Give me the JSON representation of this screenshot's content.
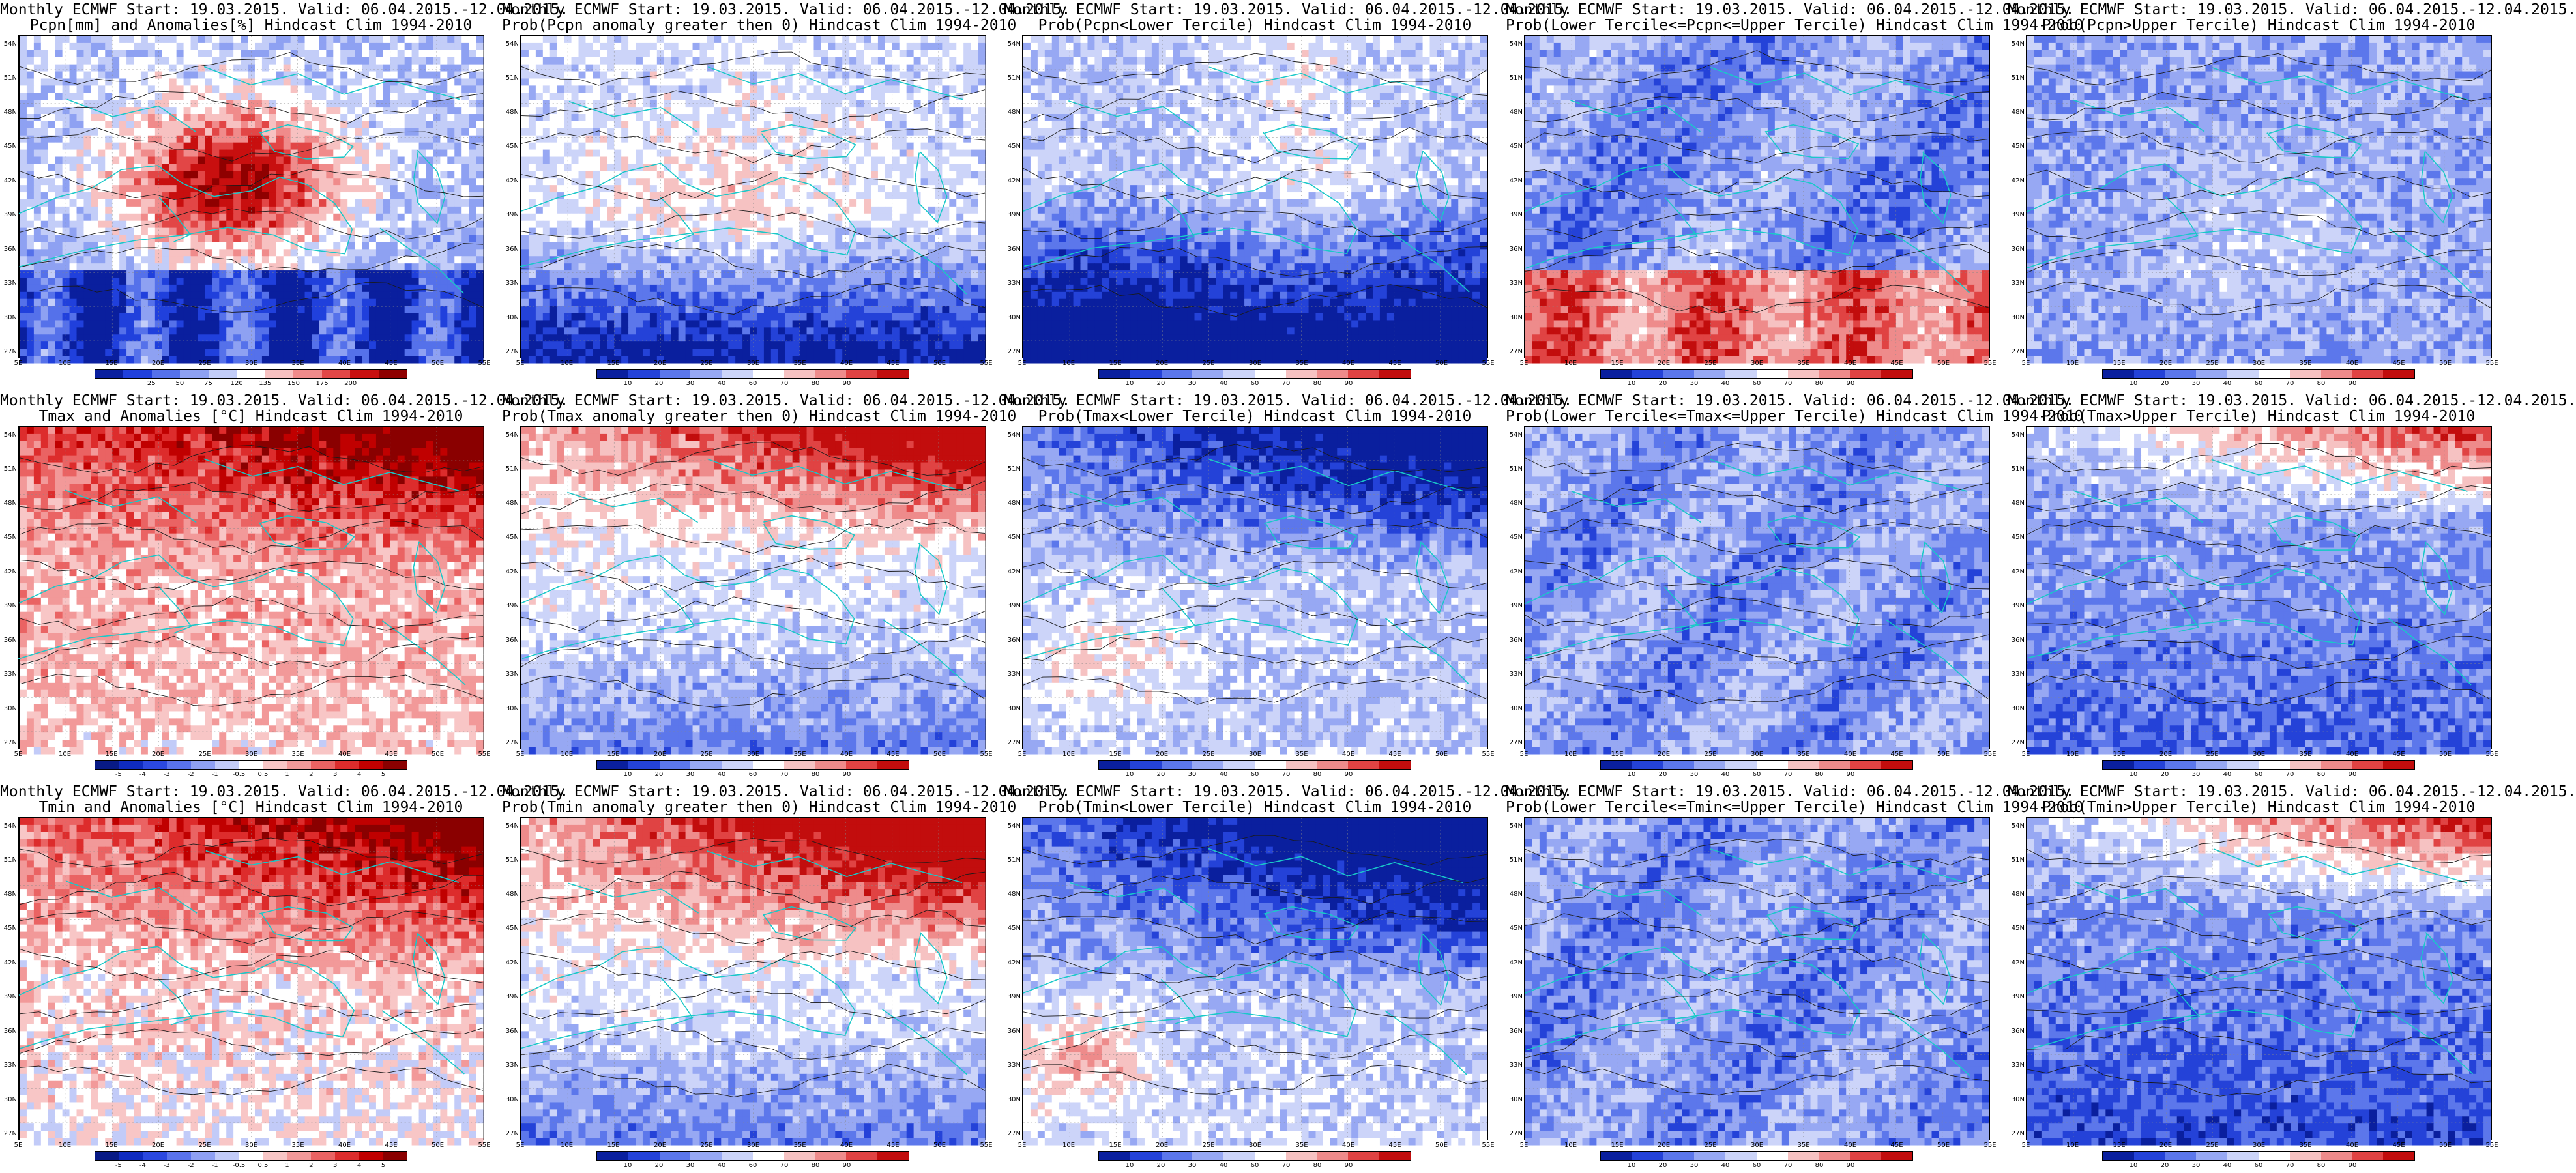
{
  "figure": {
    "rows": [
      {
        "variable": "Pcpn",
        "panels": [
          {
            "id": "pcpn-mean",
            "line1": "Monthly ECMWF Start: 19.03.2015. Valid: 06.04.2015.-12.04.2015.",
            "line2": "Pcpn[mm] and Anomalies[%] Hindcast Clim 1994-2010",
            "scale": "pcpn-anom",
            "pattern": "pcpn-anom"
          },
          {
            "id": "pcpn-prob-gt0",
            "line1": "Monthly ECMWF Start: 19.03.2015. Valid: 06.04.2015.-12.04.2015.",
            "line2": "Prob(Pcpn anomaly greater then 0) Hindcast Clim 1994-2010",
            "scale": "prob",
            "pattern": "pcpn-gt0"
          },
          {
            "id": "pcpn-prob-lower",
            "line1": "Monthly ECMWF Start: 19.03.2015. Valid: 06.04.2015.-12.04.2015.",
            "line2": "Prob(Pcpn<Lower Tercile) Hindcast Clim 1994-2010",
            "scale": "prob",
            "pattern": "pcpn-lower"
          },
          {
            "id": "pcpn-prob-middle",
            "line1": "Monthly ECMWF Start: 19.03.2015. Valid: 06.04.2015.-12.04.2015.",
            "line2": "Prob(Lower Tercile<=Pcpn<=Upper Tercile) Hindcast Clim 1994-2010",
            "scale": "prob",
            "pattern": "pcpn-middle"
          },
          {
            "id": "pcpn-prob-upper",
            "line1": "Monthly ECMWF Start: 19.03.2015. Valid: 06.04.2015.-12.04.2015.",
            "line2": "Prob(Pcpn>Upper Tercile) Hindcast Clim 1994-2010",
            "scale": "prob",
            "pattern": "pcpn-upper"
          }
        ]
      },
      {
        "variable": "Tmax",
        "panels": [
          {
            "id": "tmax-mean",
            "line1": "Monthly ECMWF Start: 19.03.2015. Valid: 06.04.2015.-12.04.2015.",
            "line2": "Tmax and Anomalies [°C] Hindcast Clim 1994-2010",
            "scale": "temp-anom",
            "pattern": "tmax-anom"
          },
          {
            "id": "tmax-prob-gt0",
            "line1": "Monthly ECMWF Start: 19.03.2015. Valid: 06.04.2015.-12.04.2015.",
            "line2": "Prob(Tmax anomaly greater then 0) Hindcast Clim 1994-2010",
            "scale": "prob",
            "pattern": "tmax-gt0"
          },
          {
            "id": "tmax-prob-lower",
            "line1": "Monthly ECMWF Start: 19.03.2015. Valid: 06.04.2015.-12.04.2015.",
            "line2": "Prob(Tmax<Lower Tercile) Hindcast Clim 1994-2010",
            "scale": "prob",
            "pattern": "tmax-lower"
          },
          {
            "id": "tmax-prob-middle",
            "line1": "Monthly ECMWF Start: 19.03.2015. Valid: 06.04.2015.-12.04.2015.",
            "line2": "Prob(Lower Tercile<=Tmax<=Upper Tercile) Hindcast Clim 1994-2010",
            "scale": "prob",
            "pattern": "tmax-middle"
          },
          {
            "id": "tmax-prob-upper",
            "line1": "Monthly ECMWF Start: 19.03.2015. Valid: 06.04.2015.-12.04.2015.",
            "line2": "Prob(Tmax>Upper Tercile) Hindcast Clim 1994-2010",
            "scale": "prob",
            "pattern": "tmax-upper"
          }
        ]
      },
      {
        "variable": "Tmin",
        "panels": [
          {
            "id": "tmin-mean",
            "line1": "Monthly ECMWF Start: 19.03.2015. Valid: 06.04.2015.-12.04.2015.",
            "line2": "Tmin and Anomalies [°C] Hindcast Clim 1994-2010",
            "scale": "temp-anom",
            "pattern": "tmin-anom"
          },
          {
            "id": "tmin-prob-gt0",
            "line1": "Monthly ECMWF Start: 19.03.2015. Valid: 06.04.2015.-12.04.2015.",
            "line2": "Prob(Tmin anomaly greater then 0) Hindcast Clim 1994-2010",
            "scale": "prob",
            "pattern": "tmin-gt0"
          },
          {
            "id": "tmin-prob-lower",
            "line1": "Monthly ECMWF Start: 19.03.2015. Valid: 06.04.2015.-12.04.2015.",
            "line2": "Prob(Tmin<Lower Tercile) Hindcast Clim 1994-2010",
            "scale": "prob",
            "pattern": "tmin-lower"
          },
          {
            "id": "tmin-prob-middle",
            "line1": "Monthly ECMWF Start: 19.03.2015. Valid: 06.04.2015.-12.04.2015.",
            "line2": "Prob(Lower Tercile<=Tmin<=Upper Tercile) Hindcast Clim 1994-2010",
            "scale": "prob",
            "pattern": "tmin-middle"
          },
          {
            "id": "tmin-prob-upper",
            "line1": "Monthly ECMWF Start: 19.03.2015. Valid: 06.04.2015.-12.04.2015.",
            "line2": "Prob(Tmin>Upper Tercile) Hindcast Clim 1994-2010",
            "scale": "prob",
            "pattern": "tmin-upper"
          }
        ]
      }
    ],
    "lat_labels": [
      "54N",
      "51N",
      "48N",
      "45N",
      "42N",
      "39N",
      "36N",
      "33N",
      "30N",
      "27N"
    ],
    "lon_labels": [
      "5E",
      "10E",
      "15E",
      "20E",
      "25E",
      "30E",
      "35E",
      "40E",
      "45E",
      "50E",
      "55E"
    ],
    "scales": {
      "pcpn-anom": {
        "labels": [
          "25",
          "50",
          "75",
          "120",
          "135",
          "150",
          "175",
          "200"
        ],
        "colors": [
          "#0a1f9e",
          "#2040dc",
          "#5571ea",
          "#8ea1f2",
          "#c3cdf8",
          "#ffffff",
          "#f7c1c1",
          "#f08b8b",
          "#e24646",
          "#c80f0f",
          "#8f0000"
        ]
      },
      "temp-anom": {
        "labels": [
          "-5",
          "-4",
          "-3",
          "-2",
          "-1",
          "-0.5",
          "0.5",
          "1",
          "2",
          "3",
          "4",
          "5"
        ],
        "colors": [
          "#081a85",
          "#0f2bbf",
          "#2b48e0",
          "#5a73ec",
          "#8fa0f3",
          "#c2cbf8",
          "#ffffff",
          "#f8c6c6",
          "#f29999",
          "#ea6363",
          "#dd2c2c",
          "#c00000",
          "#8a0000"
        ]
      },
      "prob": {
        "labels": [
          "10",
          "20",
          "30",
          "40",
          "60",
          "70",
          "80",
          "90"
        ],
        "colors": [
          "#0a1f9e",
          "#2442d8",
          "#5c77eb",
          "#97a8f3",
          "#ccd4f9",
          "#ffffff",
          "#f6c2c2",
          "#ee8b8b",
          "#e04343",
          "#c20d0d"
        ]
      }
    },
    "colors": {
      "coast": "#19c8c8",
      "contour": "#1a1a1a",
      "background": "#ffffff"
    }
  }
}
